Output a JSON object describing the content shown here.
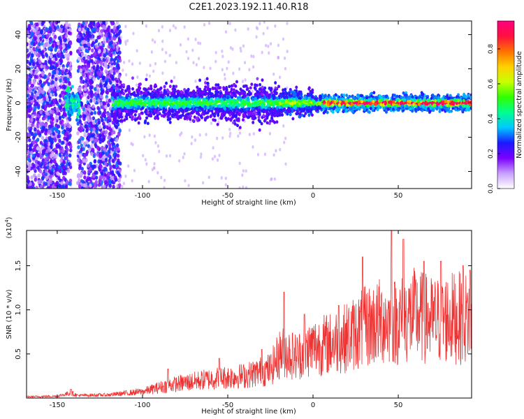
{
  "figure_title": "C2E1.2023.192.11.40.R18",
  "chart_data": [
    {
      "type": "heatmap",
      "xlabel": "Height of straight line (km)",
      "ylabel": "Frequency (Hz)",
      "xlim": [
        -168,
        93
      ],
      "ylim": [
        -50,
        48
      ],
      "x_ticks": [
        -150,
        -100,
        -50,
        0,
        50
      ],
      "y_ticks": [
        -40,
        -20,
        0,
        20,
        40
      ],
      "colorbar": {
        "label": "Normalized spectral amplitude",
        "range": [
          0,
          0.96
        ],
        "ticks": [
          0.0,
          0.2,
          0.4,
          0.6,
          0.8
        ],
        "colors": [
          "#ffffff",
          "#c8a0ff",
          "#7a00ff",
          "#1a1aff",
          "#00c8ff",
          "#00ff90",
          "#30ff00",
          "#c8ff00",
          "#ffd000",
          "#ff7000",
          "#ff1040",
          "#ff007f"
        ]
      },
      "description": "Spectral amplitude concentrated near 0 Hz; diffuse low-amplitude noise across all frequencies below -115 km; narrow high-amplitude band above 0 km."
    },
    {
      "type": "line",
      "xlabel": "Height of straight line (km)",
      "ylabel": "SNR (10 * v/v)",
      "y_exponent": "(x10",
      "y_exponent_sup": "4",
      "y_exponent_close": ")",
      "xlim": [
        -168,
        93
      ],
      "ylim": [
        0,
        1.9
      ],
      "x_ticks": [
        -150,
        -100,
        -50,
        0,
        50
      ],
      "y_ticks": [
        0.5,
        1.0,
        1.5
      ],
      "y_tick_labels": [
        "0.5",
        "1.0",
        "1.5"
      ],
      "color": "#ee3333",
      "envelope_x": [
        -168,
        -150,
        -142,
        -138,
        -120,
        -100,
        -85,
        -60,
        -40,
        -25,
        -18,
        -10,
        0,
        10,
        20,
        30,
        40,
        50,
        60,
        70,
        80,
        90,
        93
      ],
      "envelope_y": [
        0.02,
        0.03,
        0.08,
        0.04,
        0.05,
        0.1,
        0.2,
        0.3,
        0.35,
        0.45,
        0.75,
        0.65,
        0.8,
        0.85,
        0.95,
        1.1,
        1.2,
        1.2,
        1.3,
        1.2,
        1.25,
        1.25,
        1.3
      ],
      "peaks": [
        [
          -142,
          0.1
        ],
        [
          -85,
          0.33
        ],
        [
          -55,
          0.45
        ],
        [
          -30,
          0.55
        ],
        [
          -17,
          1.2
        ],
        [
          -5,
          0.95
        ],
        [
          15,
          1.05
        ],
        [
          29,
          1.6
        ],
        [
          46,
          1.9
        ],
        [
          53,
          1.8
        ],
        [
          65,
          1.55
        ],
        [
          75,
          1.55
        ],
        [
          88,
          1.5
        ],
        [
          92,
          1.45
        ]
      ]
    }
  ]
}
